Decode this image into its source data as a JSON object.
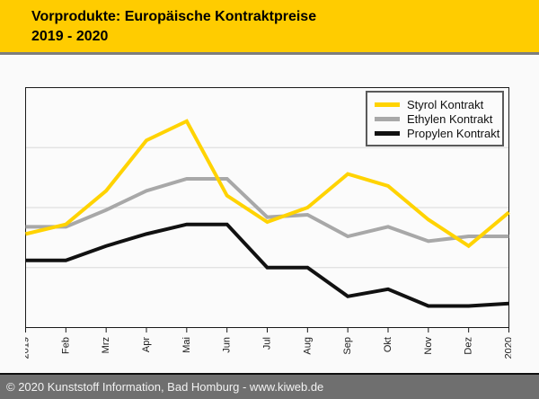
{
  "header": {
    "title_line1": "Vorprodukte: Europäische Kontraktpreise",
    "title_line2": "2019 - 2020",
    "bg_color": "#ffcc00"
  },
  "footer": {
    "copyright": "© 2020 Kunststoff Information, Bad Homburg - www.kiweb.de",
    "bg_color": "#6f6f6f"
  },
  "chart_data": {
    "type": "line",
    "title": "Vorprodukte: Europäische Kontraktpreise 2019 - 2020",
    "xlabel": "",
    "ylabel": "",
    "categories": [
      "2019",
      "Feb",
      "Mrz",
      "Apr",
      "Mai",
      "Jun",
      "Jul",
      "Aug",
      "Sep",
      "Okt",
      "Nov",
      "Dez",
      "2020"
    ],
    "series": [
      {
        "name": "Styrol Kontrakt",
        "color": "#ffd300",
        "values": [
          39,
          43,
          57,
          78,
          86,
          55,
          44,
          50,
          64,
          59,
          45,
          34,
          48
        ]
      },
      {
        "name": "Ethylen Kontrakt",
        "color": "#a8a8a8",
        "values": [
          42,
          42,
          49,
          57,
          62,
          62,
          46,
          47,
          38,
          42,
          36,
          38,
          38
        ]
      },
      {
        "name": "Propylen Kontrakt",
        "color": "#111111",
        "values": [
          28,
          28,
          34,
          39,
          43,
          43,
          25,
          25,
          13,
          16,
          9,
          9,
          10
        ]
      }
    ],
    "ylim": [
      0,
      100
    ],
    "y_axis_labels_visible": false,
    "gridlines_y": [
      25,
      50,
      75
    ],
    "grid_color": "#d9d9d9",
    "plot_border_color": "#1a1a1a",
    "legend_position": "top-right",
    "note_units": "y-axis shown without scale in source; values are percent of plot height"
  }
}
